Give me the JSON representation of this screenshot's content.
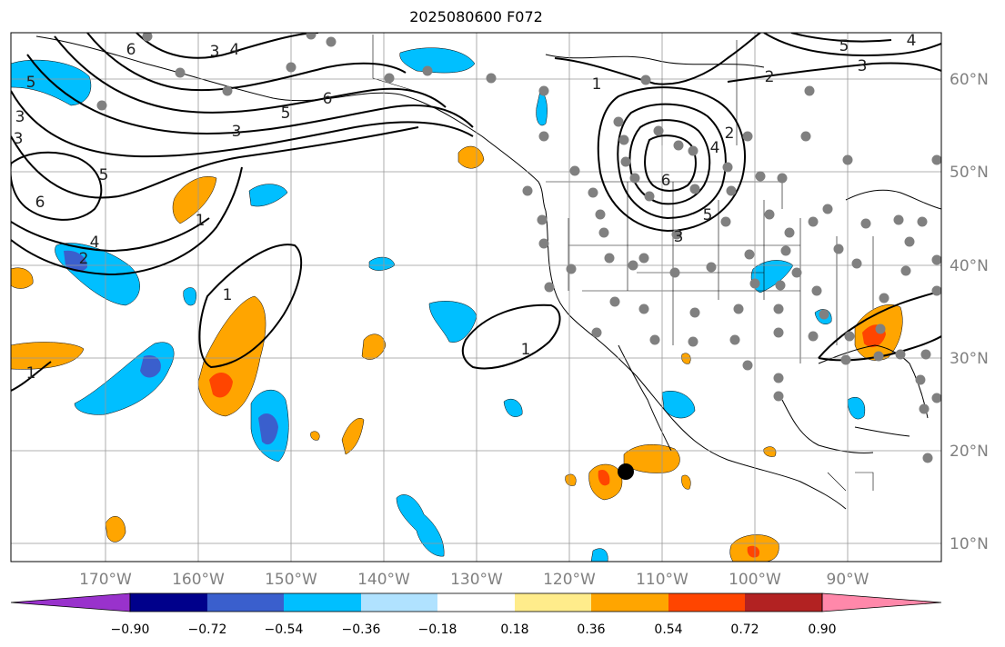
{
  "title": "2025080600 F072",
  "lon_labels": [
    "170°W",
    "160°W",
    "150°W",
    "140°W",
    "130°W",
    "120°W",
    "110°W",
    "100°W",
    "90°W"
  ],
  "lat_labels": [
    "60°N",
    "50°N",
    "40°N",
    "30°N",
    "20°N",
    "10°N"
  ],
  "colorbar": {
    "ticks": [
      "−0.90",
      "−0.72",
      "−0.54",
      "−0.36",
      "−0.18",
      "0.18",
      "0.36",
      "0.54",
      "0.72",
      "0.90"
    ],
    "colors": [
      "#9932cc",
      "#00008b",
      "#3a5fcd",
      "#00bfff",
      "#b0e2ff",
      "#ffffff",
      "#ffec8b",
      "#ffa500",
      "#ff4500",
      "#b22222",
      "#ff88aa"
    ]
  },
  "contour_labels": [
    "3",
    "4",
    "6",
    "5",
    "3",
    "6",
    "5",
    "3",
    "1",
    "4",
    "2",
    "6",
    "5",
    "3",
    "1",
    "1",
    "1",
    "2",
    "4",
    "6",
    "5",
    "3",
    "2",
    "5",
    "4",
    "3"
  ],
  "colors": {
    "cool": "#00bfff",
    "cool_light": "#b0e2ff",
    "cool_dark": "#3a5fcd",
    "warm": "#ffa500",
    "warm_dark": "#ff4500",
    "station": "#808080"
  }
}
